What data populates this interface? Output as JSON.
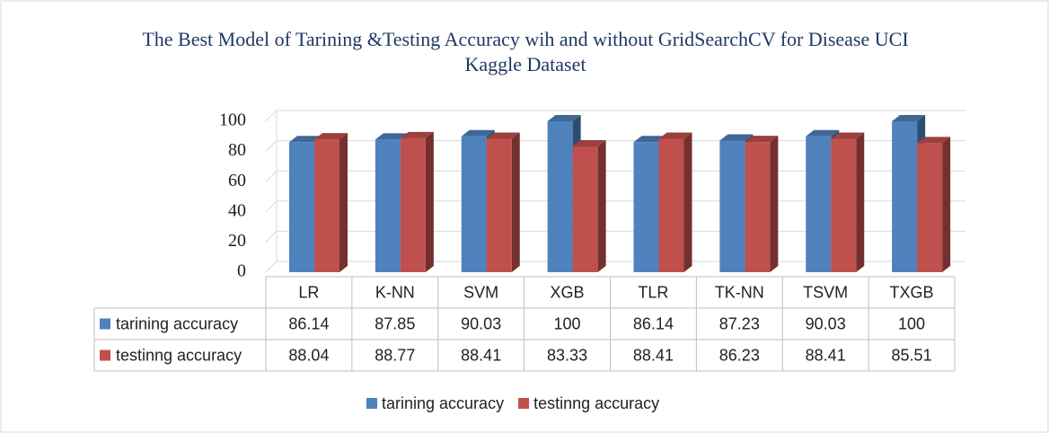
{
  "chart_data": {
    "type": "bar",
    "title": "The Best Model of Tarining &Testing Accuracy wih and without GridSearchCV for Disease UCI Kaggle Dataset",
    "categories": [
      "LR",
      "K-NN",
      "SVM",
      "XGB",
      "TLR",
      "TK-NN",
      "TSVM",
      "TXGB"
    ],
    "series": [
      {
        "name": "tarining accuracy",
        "color": "#4f81bd",
        "values": [
          86.14,
          87.85,
          90.03,
          100,
          86.14,
          87.23,
          90.03,
          100
        ]
      },
      {
        "name": "testinng accuracy",
        "color": "#c0504d",
        "values": [
          88.04,
          88.77,
          88.41,
          83.33,
          88.41,
          86.23,
          88.41,
          85.51
        ]
      }
    ],
    "ylim": [
      0,
      100
    ],
    "yticks": [
      0,
      20,
      40,
      60,
      80,
      100
    ],
    "grid": true
  }
}
